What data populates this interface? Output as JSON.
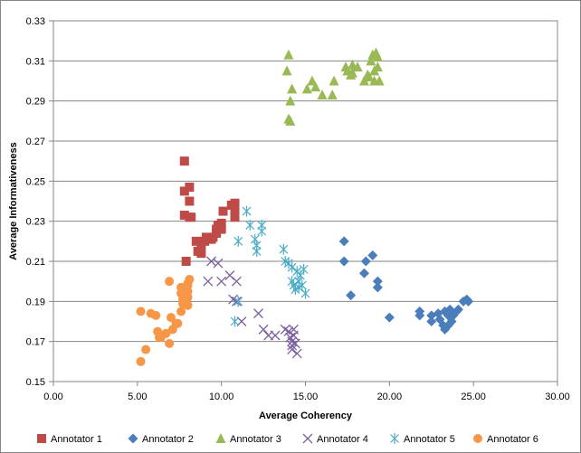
{
  "chart_data": {
    "type": "scatter",
    "title": "",
    "xlabel": "Average Coherency",
    "ylabel": "Average Informativeness",
    "xlim": [
      0,
      30
    ],
    "ylim": [
      0.15,
      0.33
    ],
    "x_ticks": [
      "0.00",
      "5.00",
      "10.00",
      "15.00",
      "20.00",
      "25.00",
      "30.00"
    ],
    "y_ticks": [
      "0.15",
      "0.17",
      "0.19",
      "0.21",
      "0.23",
      "0.25",
      "0.27",
      "0.29",
      "0.31",
      "0.33"
    ],
    "grid": "horizontal",
    "legend_position": "bottom",
    "series": [
      {
        "name": "Annotator 1",
        "marker": "square",
        "color": "#BE4B48",
        "points": [
          [
            7.8,
            0.26
          ],
          [
            7.8,
            0.245
          ],
          [
            8.1,
            0.247
          ],
          [
            8.1,
            0.24
          ],
          [
            7.8,
            0.233
          ],
          [
            8.1,
            0.232
          ],
          [
            8.2,
            0.232
          ],
          [
            7.9,
            0.21
          ],
          [
            8.5,
            0.22
          ],
          [
            8.6,
            0.215
          ],
          [
            8.8,
            0.218
          ],
          [
            8.8,
            0.214
          ],
          [
            9.0,
            0.22
          ],
          [
            9.1,
            0.222
          ],
          [
            9.2,
            0.221
          ],
          [
            9.4,
            0.221
          ],
          [
            9.5,
            0.222
          ],
          [
            9.7,
            0.224
          ],
          [
            9.7,
            0.226
          ],
          [
            9.8,
            0.228
          ],
          [
            10.0,
            0.229
          ],
          [
            10.0,
            0.226
          ],
          [
            10.1,
            0.235
          ],
          [
            10.6,
            0.238
          ],
          [
            10.8,
            0.239
          ],
          [
            10.8,
            0.236
          ],
          [
            10.8,
            0.232
          ]
        ]
      },
      {
        "name": "Annotator 2",
        "marker": "diamond",
        "color": "#4A7EBB",
        "points": [
          [
            17.3,
            0.22
          ],
          [
            17.3,
            0.21
          ],
          [
            17.7,
            0.193
          ],
          [
            18.5,
            0.204
          ],
          [
            18.6,
            0.21
          ],
          [
            19.0,
            0.213
          ],
          [
            19.3,
            0.197
          ],
          [
            19.3,
            0.2
          ],
          [
            20.0,
            0.182
          ],
          [
            21.8,
            0.185
          ],
          [
            21.8,
            0.183
          ],
          [
            22.5,
            0.183
          ],
          [
            22.5,
            0.18
          ],
          [
            22.9,
            0.184
          ],
          [
            23.0,
            0.181
          ],
          [
            23.2,
            0.178
          ],
          [
            23.3,
            0.185
          ],
          [
            23.3,
            0.176
          ],
          [
            23.5,
            0.178
          ],
          [
            23.5,
            0.183
          ],
          [
            23.6,
            0.186
          ],
          [
            23.7,
            0.18
          ],
          [
            23.8,
            0.183
          ],
          [
            24.0,
            0.185
          ],
          [
            24.1,
            0.186
          ],
          [
            24.4,
            0.19
          ],
          [
            24.6,
            0.191
          ],
          [
            24.7,
            0.19
          ]
        ]
      },
      {
        "name": "Annotator 3",
        "marker": "triangle",
        "color": "#98B954",
        "points": [
          [
            13.9,
            0.305
          ],
          [
            14.0,
            0.313
          ],
          [
            14.1,
            0.29
          ],
          [
            14.0,
            0.281
          ],
          [
            14.1,
            0.28
          ],
          [
            14.2,
            0.296
          ],
          [
            15.1,
            0.296
          ],
          [
            15.4,
            0.3
          ],
          [
            15.6,
            0.297
          ],
          [
            16.0,
            0.293
          ],
          [
            16.6,
            0.293
          ],
          [
            16.7,
            0.3
          ],
          [
            17.4,
            0.307
          ],
          [
            17.5,
            0.305
          ],
          [
            17.7,
            0.303
          ],
          [
            17.8,
            0.308
          ],
          [
            17.8,
            0.304
          ],
          [
            18.1,
            0.307
          ],
          [
            18.5,
            0.3
          ],
          [
            18.7,
            0.303
          ],
          [
            18.8,
            0.302
          ],
          [
            18.9,
            0.31
          ],
          [
            19.0,
            0.313
          ],
          [
            19.1,
            0.305
          ],
          [
            19.1,
            0.3
          ],
          [
            19.2,
            0.314
          ],
          [
            19.3,
            0.307
          ],
          [
            19.3,
            0.312
          ],
          [
            19.4,
            0.3
          ]
        ]
      },
      {
        "name": "Annotator 4",
        "marker": "x",
        "color": "#7D60A0",
        "points": [
          [
            9.2,
            0.2
          ],
          [
            9.4,
            0.21
          ],
          [
            9.8,
            0.209
          ],
          [
            10.0,
            0.2
          ],
          [
            10.5,
            0.203
          ],
          [
            10.7,
            0.191
          ],
          [
            10.9,
            0.19
          ],
          [
            10.9,
            0.2
          ],
          [
            11.2,
            0.18
          ],
          [
            12.2,
            0.184
          ],
          [
            12.5,
            0.176
          ],
          [
            12.8,
            0.173
          ],
          [
            13.2,
            0.173
          ],
          [
            13.8,
            0.176
          ],
          [
            14.0,
            0.175
          ],
          [
            14.1,
            0.172
          ],
          [
            14.2,
            0.17
          ],
          [
            14.2,
            0.168
          ],
          [
            14.2,
            0.166
          ],
          [
            14.3,
            0.176
          ],
          [
            14.3,
            0.173
          ],
          [
            14.4,
            0.169
          ],
          [
            14.5,
            0.164
          ]
        ]
      },
      {
        "name": "Annotator 5",
        "marker": "star",
        "color": "#4BACC6",
        "points": [
          [
            10.8,
            0.18
          ],
          [
            11.0,
            0.19
          ],
          [
            11.0,
            0.22
          ],
          [
            11.5,
            0.235
          ],
          [
            11.7,
            0.228
          ],
          [
            12.0,
            0.221
          ],
          [
            12.1,
            0.218
          ],
          [
            12.1,
            0.215
          ],
          [
            12.4,
            0.228
          ],
          [
            12.4,
            0.225
          ],
          [
            13.7,
            0.216
          ],
          [
            13.8,
            0.21
          ],
          [
            14.0,
            0.209
          ],
          [
            14.2,
            0.207
          ],
          [
            14.2,
            0.2
          ],
          [
            14.3,
            0.198
          ],
          [
            14.4,
            0.196
          ],
          [
            14.5,
            0.205
          ],
          [
            14.6,
            0.2
          ],
          [
            14.6,
            0.197
          ],
          [
            14.7,
            0.203
          ],
          [
            14.8,
            0.198
          ],
          [
            14.9,
            0.206
          ],
          [
            15.0,
            0.194
          ]
        ]
      },
      {
        "name": "Annotator 6",
        "marker": "circle",
        "color": "#F79646",
        "points": [
          [
            5.2,
            0.16
          ],
          [
            5.2,
            0.185
          ],
          [
            5.5,
            0.166
          ],
          [
            5.8,
            0.184
          ],
          [
            6.1,
            0.183
          ],
          [
            6.2,
            0.175
          ],
          [
            6.3,
            0.172
          ],
          [
            6.4,
            0.172
          ],
          [
            6.7,
            0.174
          ],
          [
            6.9,
            0.169
          ],
          [
            6.9,
            0.2
          ],
          [
            7.0,
            0.182
          ],
          [
            7.1,
            0.176
          ],
          [
            7.3,
            0.179
          ],
          [
            7.4,
            0.179
          ],
          [
            7.6,
            0.185
          ],
          [
            7.6,
            0.194
          ],
          [
            7.6,
            0.197
          ],
          [
            7.7,
            0.191
          ],
          [
            7.7,
            0.189
          ],
          [
            7.9,
            0.195
          ],
          [
            8.0,
            0.199
          ],
          [
            8.0,
            0.198
          ],
          [
            8.0,
            0.195
          ],
          [
            8.0,
            0.192
          ],
          [
            8.0,
            0.188
          ],
          [
            8.1,
            0.201
          ]
        ]
      }
    ]
  }
}
